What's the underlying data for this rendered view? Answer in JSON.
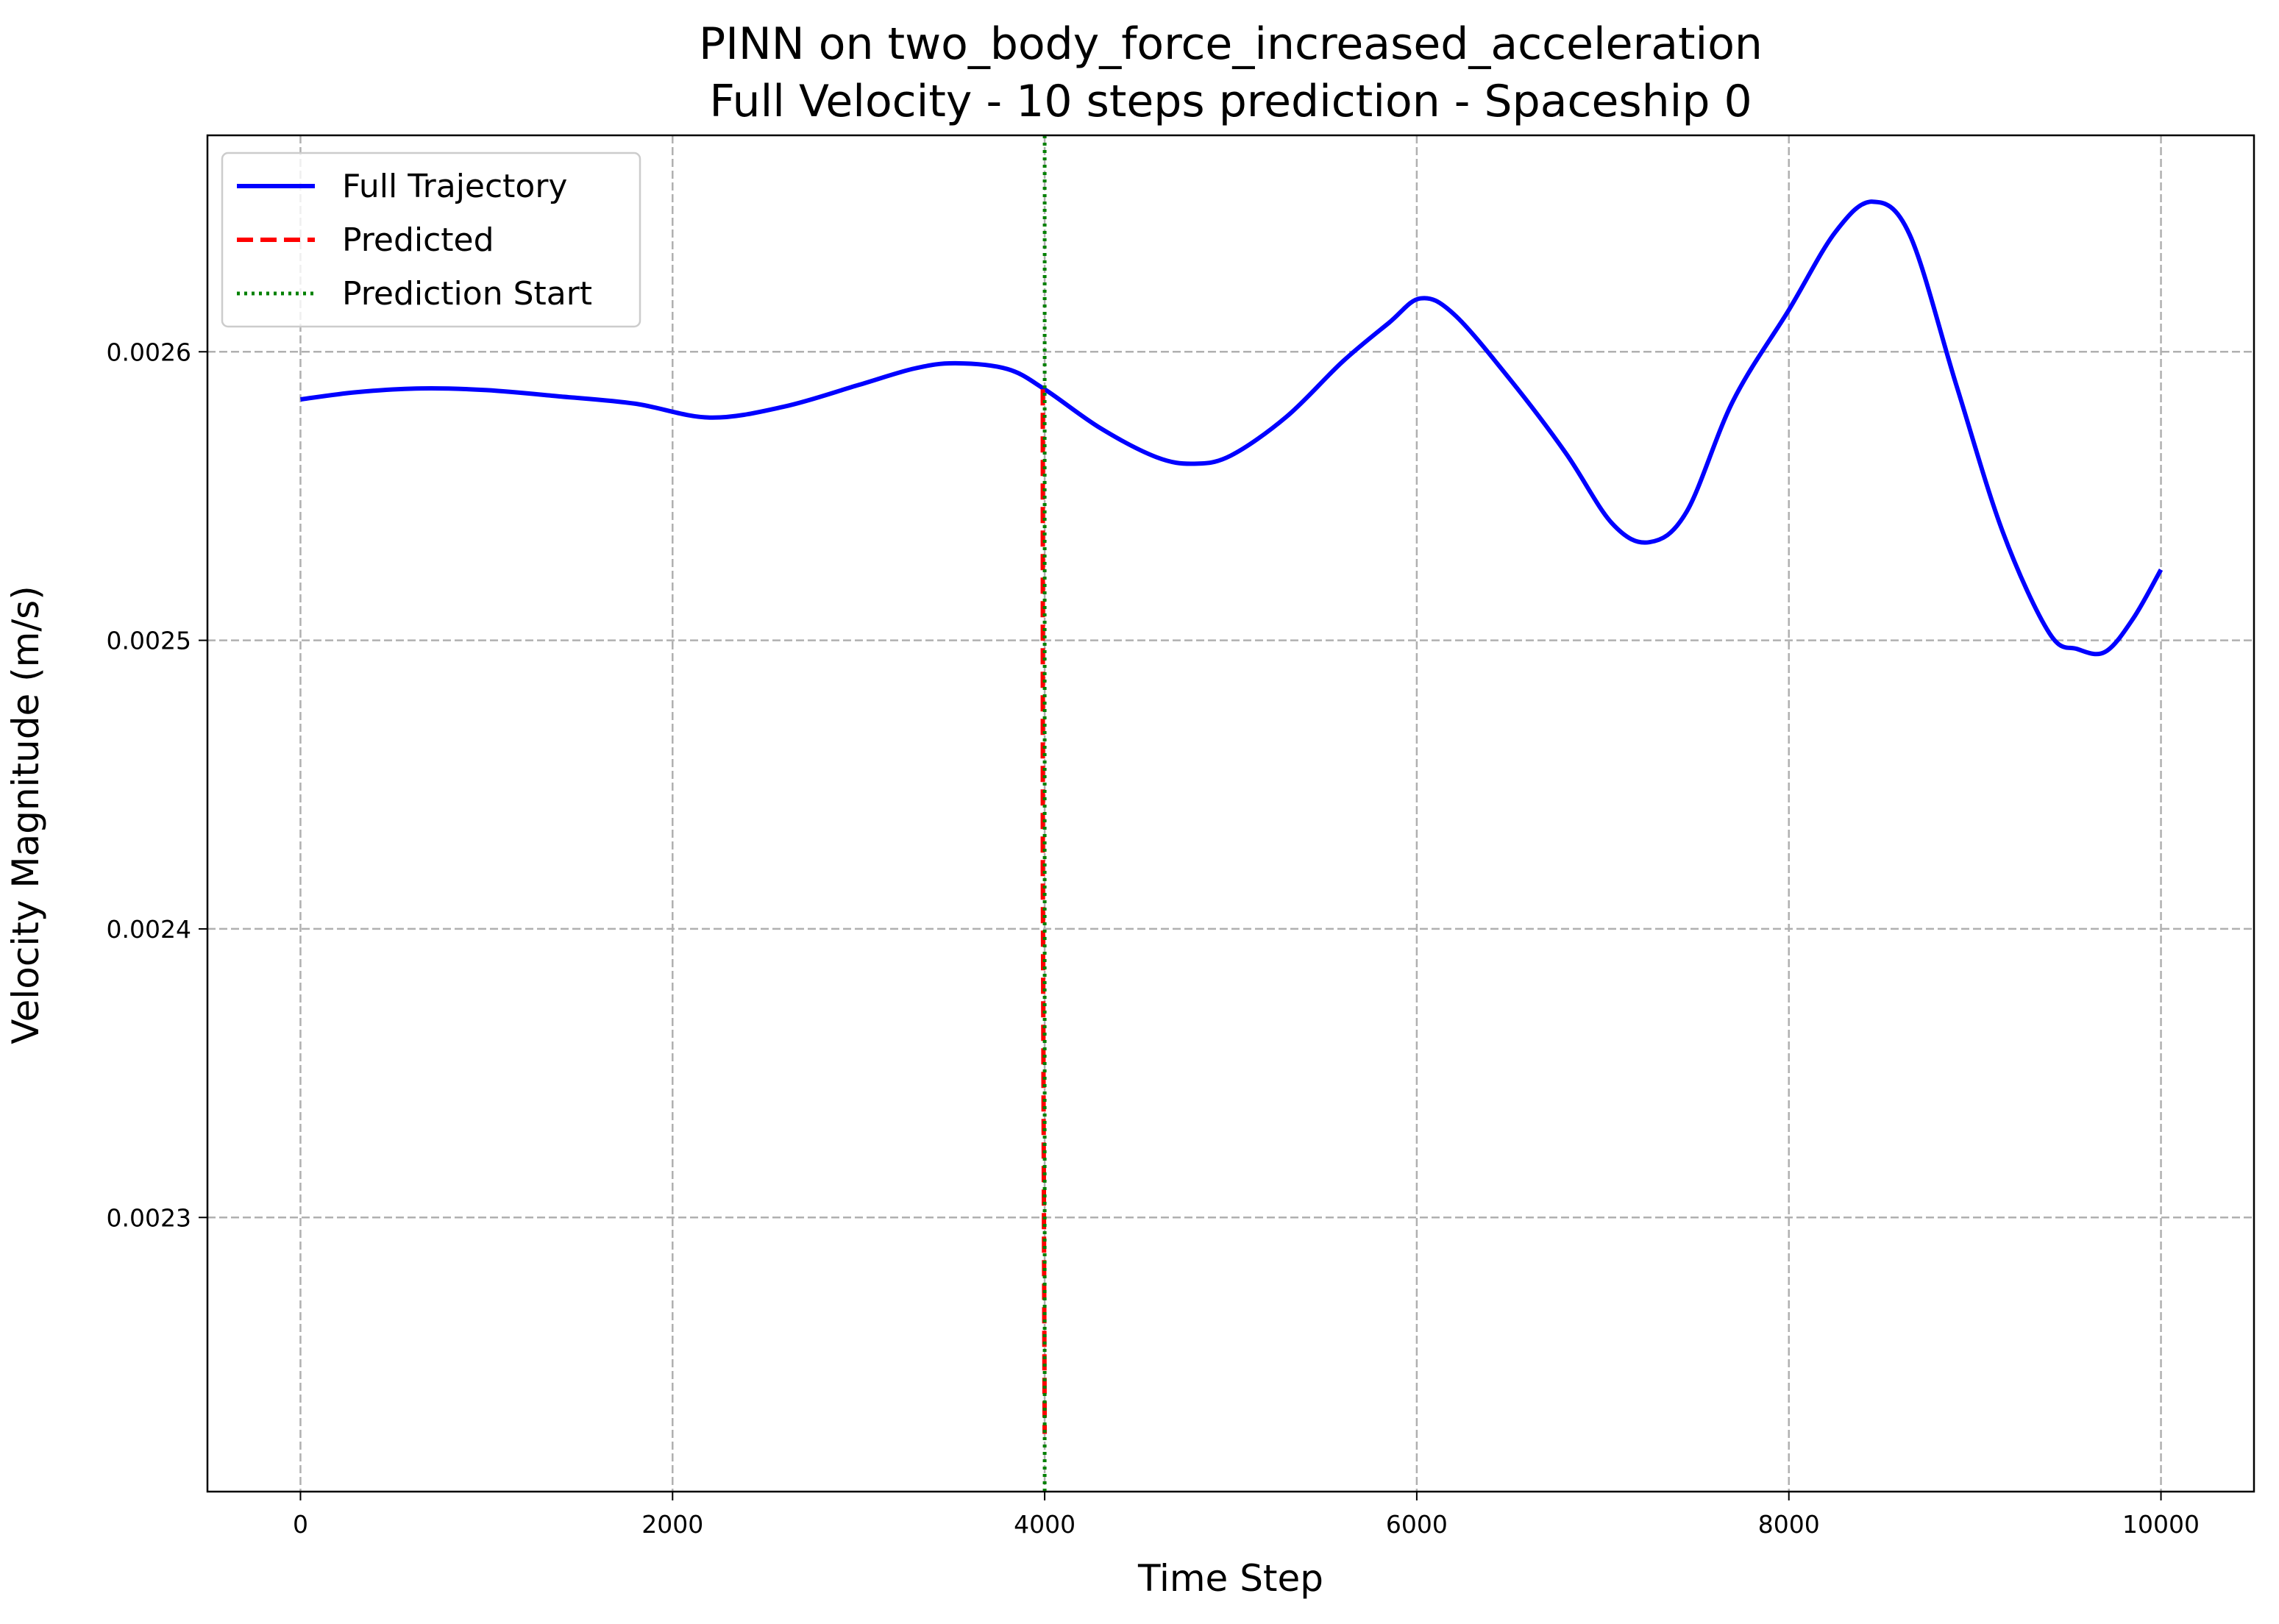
{
  "chart_data": {
    "type": "line",
    "title": "PINN on two_body_force_increased_acceleration",
    "subtitle": "Full Velocity - 10 steps prediction - Spaceship 0",
    "xlabel": "Time Step",
    "ylabel": "Velocity Magnitude (m/s)",
    "xlim": [
      -500,
      10500
    ],
    "ylim": [
      0.002205,
      0.002675
    ],
    "xticks": [
      0,
      2000,
      4000,
      6000,
      8000,
      10000
    ],
    "yticks": [
      0.0023,
      0.0024,
      0.0025,
      0.0026
    ],
    "xtick_labels": [
      "0",
      "2000",
      "4000",
      "6000",
      "8000",
      "10000"
    ],
    "ytick_labels": [
      "0.0023",
      "0.0024",
      "0.0025",
      "0.0026"
    ],
    "grid": true,
    "legend_position": "top-left",
    "series": [
      {
        "name": "Full Trajectory",
        "color": "#0000ff",
        "style": "solid",
        "x": [
          0,
          300,
          650,
          1000,
          1400,
          1800,
          2200,
          2600,
          3000,
          3300,
          3520,
          3800,
          4000,
          4300,
          4600,
          4800,
          5000,
          5300,
          5600,
          5850,
          6020,
          6200,
          6500,
          6800,
          7050,
          7250,
          7450,
          7700,
          8000,
          8250,
          8450,
          8650,
          8900,
          9150,
          9400,
          9550,
          9700,
          9850,
          10000
        ],
        "y": [
          0.0025835,
          0.002586,
          0.0025873,
          0.0025867,
          0.0025845,
          0.002582,
          0.0025772,
          0.002581,
          0.0025885,
          0.0025942,
          0.002596,
          0.002594,
          0.002587,
          0.0025735,
          0.0025635,
          0.0025612,
          0.002564,
          0.0025775,
          0.0025965,
          0.00261,
          0.0026185,
          0.002613,
          0.0025905,
          0.002565,
          0.0025405,
          0.002534,
          0.0025445,
          0.002583,
          0.0026145,
          0.0026415,
          0.002652,
          0.0026405,
          0.0025885,
          0.0025375,
          0.0025025,
          0.002497,
          0.002496,
          0.0025075,
          0.0025245
        ]
      },
      {
        "name": "Predicted",
        "color": "#ff0000",
        "style": "dashed",
        "x": [
          3990,
          3990,
          4000
        ],
        "y": [
          0.002587,
          0.00242,
          0.002225
        ]
      },
      {
        "name": "Prediction Start",
        "color": "#008000",
        "style": "dotted",
        "vline_x": 4000
      }
    ]
  }
}
